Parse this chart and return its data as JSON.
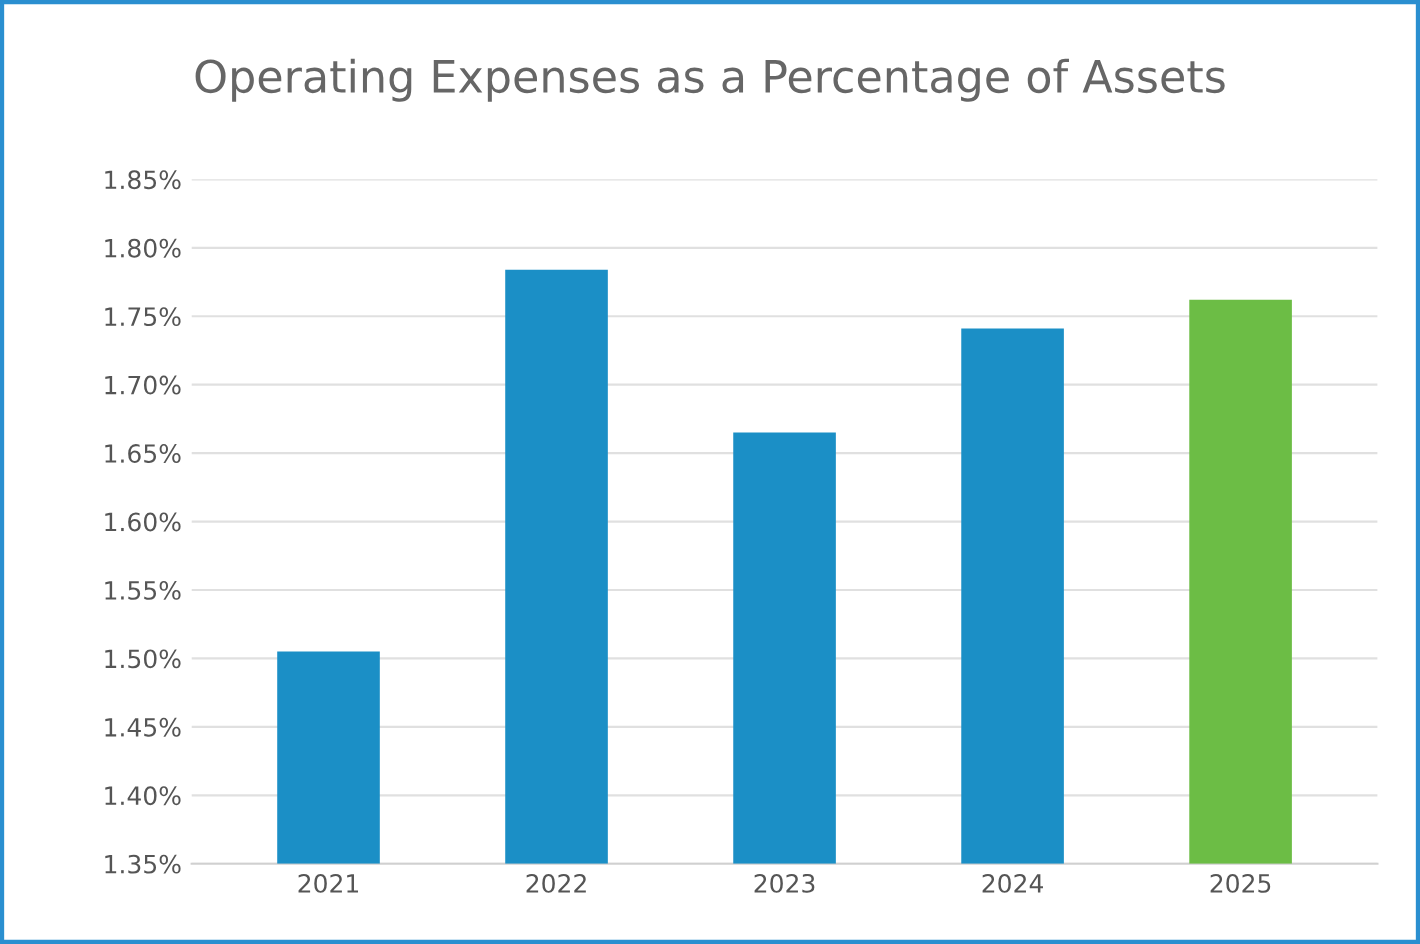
{
  "chart_data": {
    "type": "bar",
    "title": "Operating Expenses as a Percentage of Assets",
    "categories": [
      "2021",
      "2022",
      "2023",
      "2024",
      "2025"
    ],
    "values": [
      1.505,
      1.784,
      1.665,
      1.741,
      1.762
    ],
    "colors": [
      "#1b8fc6",
      "#1b8fc6",
      "#1b8fc6",
      "#1b8fc6",
      "#6cbd45"
    ],
    "ylim": [
      1.35,
      1.85
    ],
    "yticks": [
      {
        "value": 1.35,
        "label": "1.35%"
      },
      {
        "value": 1.4,
        "label": "1.40%"
      },
      {
        "value": 1.45,
        "label": "1.45%"
      },
      {
        "value": 1.5,
        "label": "1.50%"
      },
      {
        "value": 1.55,
        "label": "1.55%"
      },
      {
        "value": 1.6,
        "label": "1.60%"
      },
      {
        "value": 1.65,
        "label": "1.65%"
      },
      {
        "value": 1.7,
        "label": "1.70%"
      },
      {
        "value": 1.75,
        "label": "1.75%"
      },
      {
        "value": 1.8,
        "label": "1.80%"
      },
      {
        "value": 1.85,
        "label": "1.85%"
      }
    ],
    "grid": "y"
  }
}
